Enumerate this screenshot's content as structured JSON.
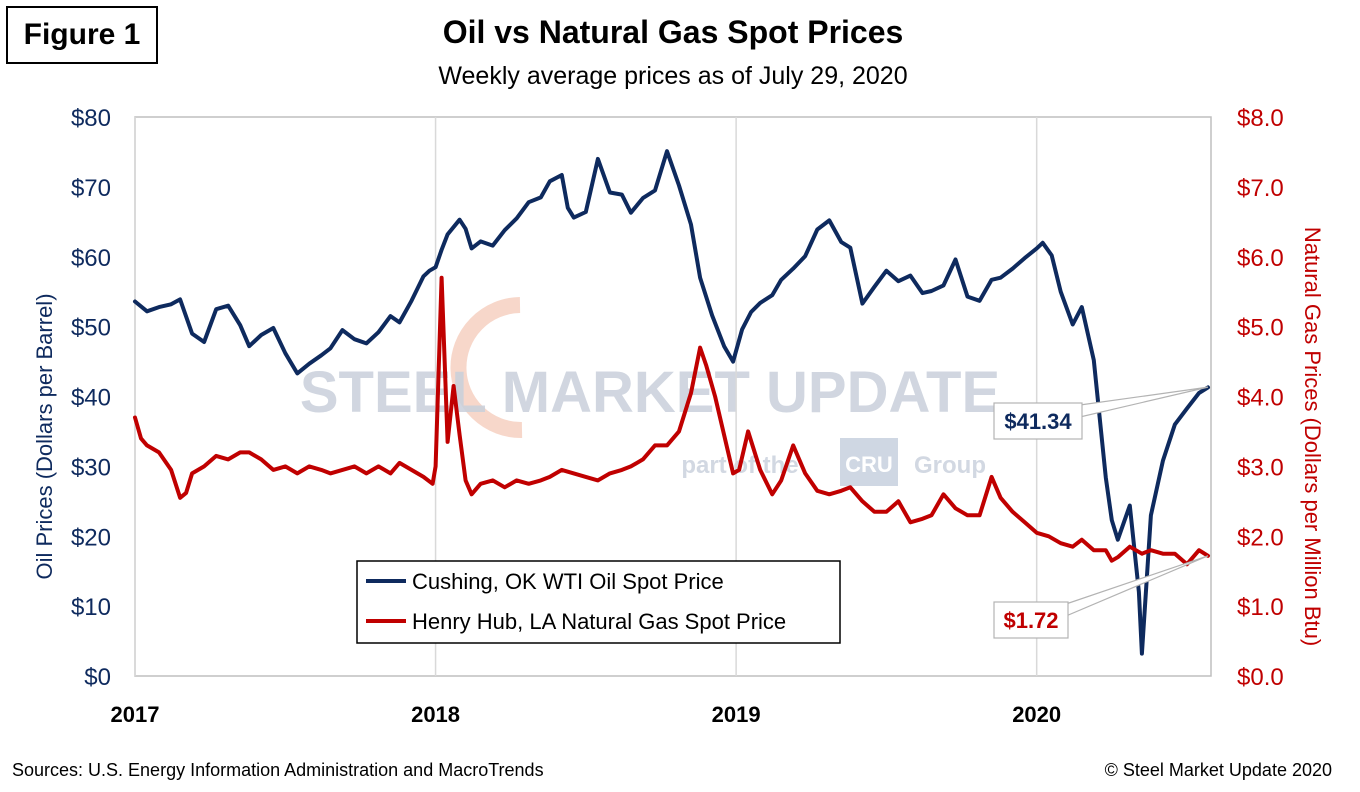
{
  "figure_label": "Figure 1",
  "footer": {
    "sources": "Sources: U.S. Energy Information Administration and MacroTrends",
    "copyright": "© Steel Market Update 2020"
  },
  "watermark": {
    "main": "STEEL MARKET UPDATE",
    "sub_prefix": "part of the",
    "sub_brand": "CRU",
    "sub_suffix": "Group"
  },
  "colors": {
    "oil": "#0e2a5e",
    "gas": "#c00000",
    "plot_border": "#bfbfbf",
    "grid": "#d9d9d9"
  },
  "chart_data": {
    "type": "line",
    "title": "Oil vs Natural Gas Spot Prices",
    "subtitle": "Weekly average prices as of July 29, 2020",
    "x_ticks": [
      "2017",
      "2018",
      "2019",
      "2020"
    ],
    "x_range": [
      2017.0,
      2020.58
    ],
    "y_left": {
      "label": "Oil Prices (Dollars per Barrel)",
      "range": [
        0,
        80
      ],
      "ticks": [
        "$0",
        "$10",
        "$20",
        "$30",
        "$40",
        "$50",
        "$60",
        "$70",
        "$80"
      ]
    },
    "y_right": {
      "label": "Natural Gas Prices (Dollars per Million Btu)",
      "range": [
        0,
        8
      ],
      "ticks": [
        "$0.0",
        "$1.0",
        "$2.0",
        "$3.0",
        "$4.0",
        "$5.0",
        "$6.0",
        "$7.0",
        "$8.0"
      ]
    },
    "legend": {
      "position": "bottom-center",
      "entries": [
        "Cushing, OK WTI Oil Spot Price",
        "Henry Hub, LA Natural Gas Spot Price"
      ]
    },
    "annotations": [
      {
        "series": "Cushing, OK WTI Oil Spot Price",
        "text": "$41.34",
        "x": 2020.57,
        "y": 41.34
      },
      {
        "series": "Henry Hub, LA Natural Gas Spot Price",
        "text": "$1.72",
        "x": 2020.57,
        "y": 1.72
      }
    ],
    "series": [
      {
        "name": "Cushing, OK WTI Oil Spot Price",
        "axis": "left",
        "points": [
          [
            2017.0,
            53.6
          ],
          [
            2017.04,
            52.2
          ],
          [
            2017.08,
            52.8
          ],
          [
            2017.12,
            53.2
          ],
          [
            2017.15,
            53.9
          ],
          [
            2017.19,
            49.0
          ],
          [
            2017.23,
            47.8
          ],
          [
            2017.27,
            52.5
          ],
          [
            2017.31,
            53.0
          ],
          [
            2017.35,
            50.2
          ],
          [
            2017.38,
            47.2
          ],
          [
            2017.42,
            48.8
          ],
          [
            2017.46,
            49.8
          ],
          [
            2017.5,
            46.2
          ],
          [
            2017.54,
            43.3
          ],
          [
            2017.58,
            44.7
          ],
          [
            2017.62,
            45.9
          ],
          [
            2017.65,
            46.9
          ],
          [
            2017.69,
            49.5
          ],
          [
            2017.73,
            48.2
          ],
          [
            2017.77,
            47.6
          ],
          [
            2017.81,
            49.2
          ],
          [
            2017.85,
            51.5
          ],
          [
            2017.88,
            50.6
          ],
          [
            2017.92,
            53.7
          ],
          [
            2017.96,
            57.2
          ],
          [
            2017.98,
            58.0
          ],
          [
            2018.0,
            58.5
          ],
          [
            2018.02,
            61.0
          ],
          [
            2018.04,
            63.2
          ],
          [
            2018.08,
            65.3
          ],
          [
            2018.1,
            64.0
          ],
          [
            2018.12,
            61.2
          ],
          [
            2018.15,
            62.2
          ],
          [
            2018.19,
            61.6
          ],
          [
            2018.23,
            63.8
          ],
          [
            2018.27,
            65.5
          ],
          [
            2018.31,
            67.8
          ],
          [
            2018.35,
            68.5
          ],
          [
            2018.38,
            70.8
          ],
          [
            2018.42,
            71.7
          ],
          [
            2018.44,
            67.0
          ],
          [
            2018.46,
            65.6
          ],
          [
            2018.5,
            66.4
          ],
          [
            2018.54,
            74.0
          ],
          [
            2018.58,
            69.2
          ],
          [
            2018.62,
            68.9
          ],
          [
            2018.65,
            66.3
          ],
          [
            2018.69,
            68.4
          ],
          [
            2018.73,
            69.5
          ],
          [
            2018.77,
            75.1
          ],
          [
            2018.81,
            70.2
          ],
          [
            2018.85,
            64.6
          ],
          [
            2018.88,
            57.0
          ],
          [
            2018.92,
            51.6
          ],
          [
            2018.96,
            47.2
          ],
          [
            2018.99,
            45.0
          ],
          [
            2019.02,
            49.6
          ],
          [
            2019.05,
            52.1
          ],
          [
            2019.08,
            53.4
          ],
          [
            2019.12,
            54.5
          ],
          [
            2019.15,
            56.7
          ],
          [
            2019.19,
            58.3
          ],
          [
            2019.23,
            60.1
          ],
          [
            2019.27,
            63.9
          ],
          [
            2019.31,
            65.2
          ],
          [
            2019.35,
            62.1
          ],
          [
            2019.38,
            61.3
          ],
          [
            2019.42,
            53.3
          ],
          [
            2019.46,
            55.7
          ],
          [
            2019.5,
            58.0
          ],
          [
            2019.54,
            56.5
          ],
          [
            2019.58,
            57.3
          ],
          [
            2019.62,
            54.8
          ],
          [
            2019.65,
            55.1
          ],
          [
            2019.69,
            55.9
          ],
          [
            2019.73,
            59.6
          ],
          [
            2019.77,
            54.3
          ],
          [
            2019.81,
            53.7
          ],
          [
            2019.85,
            56.7
          ],
          [
            2019.88,
            57.0
          ],
          [
            2019.92,
            58.3
          ],
          [
            2019.96,
            59.8
          ],
          [
            2020.0,
            61.2
          ],
          [
            2020.02,
            62.0
          ],
          [
            2020.05,
            60.2
          ],
          [
            2020.08,
            55.0
          ],
          [
            2020.12,
            50.3
          ],
          [
            2020.15,
            52.8
          ],
          [
            2020.19,
            45.2
          ],
          [
            2020.23,
            28.4
          ],
          [
            2020.25,
            22.3
          ],
          [
            2020.27,
            19.5
          ],
          [
            2020.31,
            24.4
          ],
          [
            2020.34,
            12.0
          ],
          [
            2020.35,
            3.2
          ],
          [
            2020.38,
            23.0
          ],
          [
            2020.42,
            30.8
          ],
          [
            2020.46,
            36.0
          ],
          [
            2020.5,
            38.3
          ],
          [
            2020.54,
            40.5
          ],
          [
            2020.57,
            41.3
          ]
        ]
      },
      {
        "name": "Henry Hub, LA Natural Gas Spot Price",
        "axis": "right",
        "points": [
          [
            2017.0,
            3.7
          ],
          [
            2017.02,
            3.4
          ],
          [
            2017.04,
            3.3
          ],
          [
            2017.08,
            3.2
          ],
          [
            2017.12,
            2.95
          ],
          [
            2017.15,
            2.55
          ],
          [
            2017.17,
            2.62
          ],
          [
            2017.19,
            2.9
          ],
          [
            2017.23,
            3.0
          ],
          [
            2017.27,
            3.15
          ],
          [
            2017.31,
            3.1
          ],
          [
            2017.35,
            3.2
          ],
          [
            2017.38,
            3.2
          ],
          [
            2017.42,
            3.1
          ],
          [
            2017.46,
            2.95
          ],
          [
            2017.5,
            3.0
          ],
          [
            2017.54,
            2.9
          ],
          [
            2017.58,
            3.0
          ],
          [
            2017.62,
            2.95
          ],
          [
            2017.65,
            2.9
          ],
          [
            2017.69,
            2.95
          ],
          [
            2017.73,
            3.0
          ],
          [
            2017.77,
            2.9
          ],
          [
            2017.81,
            3.0
          ],
          [
            2017.85,
            2.9
          ],
          [
            2017.88,
            3.05
          ],
          [
            2017.92,
            2.95
          ],
          [
            2017.96,
            2.85
          ],
          [
            2017.99,
            2.75
          ],
          [
            2018.0,
            3.0
          ],
          [
            2018.02,
            5.7
          ],
          [
            2018.04,
            3.35
          ],
          [
            2018.06,
            4.15
          ],
          [
            2018.08,
            3.45
          ],
          [
            2018.1,
            2.8
          ],
          [
            2018.12,
            2.6
          ],
          [
            2018.15,
            2.75
          ],
          [
            2018.19,
            2.8
          ],
          [
            2018.23,
            2.7
          ],
          [
            2018.27,
            2.8
          ],
          [
            2018.31,
            2.75
          ],
          [
            2018.35,
            2.8
          ],
          [
            2018.38,
            2.85
          ],
          [
            2018.42,
            2.95
          ],
          [
            2018.46,
            2.9
          ],
          [
            2018.5,
            2.85
          ],
          [
            2018.54,
            2.8
          ],
          [
            2018.58,
            2.9
          ],
          [
            2018.62,
            2.95
          ],
          [
            2018.65,
            3.0
          ],
          [
            2018.69,
            3.1
          ],
          [
            2018.73,
            3.3
          ],
          [
            2018.77,
            3.3
          ],
          [
            2018.81,
            3.5
          ],
          [
            2018.85,
            4.05
          ],
          [
            2018.88,
            4.7
          ],
          [
            2018.9,
            4.45
          ],
          [
            2018.93,
            4.0
          ],
          [
            2018.96,
            3.45
          ],
          [
            2018.99,
            2.9
          ],
          [
            2019.01,
            2.95
          ],
          [
            2019.04,
            3.5
          ],
          [
            2019.08,
            2.95
          ],
          [
            2019.12,
            2.6
          ],
          [
            2019.15,
            2.8
          ],
          [
            2019.19,
            3.3
          ],
          [
            2019.23,
            2.9
          ],
          [
            2019.27,
            2.65
          ],
          [
            2019.31,
            2.6
          ],
          [
            2019.35,
            2.65
          ],
          [
            2019.38,
            2.7
          ],
          [
            2019.42,
            2.5
          ],
          [
            2019.46,
            2.35
          ],
          [
            2019.5,
            2.35
          ],
          [
            2019.54,
            2.5
          ],
          [
            2019.58,
            2.2
          ],
          [
            2019.62,
            2.25
          ],
          [
            2019.65,
            2.3
          ],
          [
            2019.69,
            2.6
          ],
          [
            2019.73,
            2.4
          ],
          [
            2019.77,
            2.3
          ],
          [
            2019.81,
            2.3
          ],
          [
            2019.85,
            2.85
          ],
          [
            2019.88,
            2.55
          ],
          [
            2019.92,
            2.35
          ],
          [
            2019.96,
            2.2
          ],
          [
            2020.0,
            2.05
          ],
          [
            2020.04,
            2.0
          ],
          [
            2020.08,
            1.9
          ],
          [
            2020.12,
            1.85
          ],
          [
            2020.15,
            1.95
          ],
          [
            2020.19,
            1.8
          ],
          [
            2020.23,
            1.8
          ],
          [
            2020.25,
            1.65
          ],
          [
            2020.27,
            1.7
          ],
          [
            2020.31,
            1.85
          ],
          [
            2020.35,
            1.75
          ],
          [
            2020.38,
            1.8
          ],
          [
            2020.42,
            1.75
          ],
          [
            2020.46,
            1.75
          ],
          [
            2020.5,
            1.6
          ],
          [
            2020.52,
            1.7
          ],
          [
            2020.54,
            1.8
          ],
          [
            2020.57,
            1.72
          ]
        ]
      }
    ]
  }
}
